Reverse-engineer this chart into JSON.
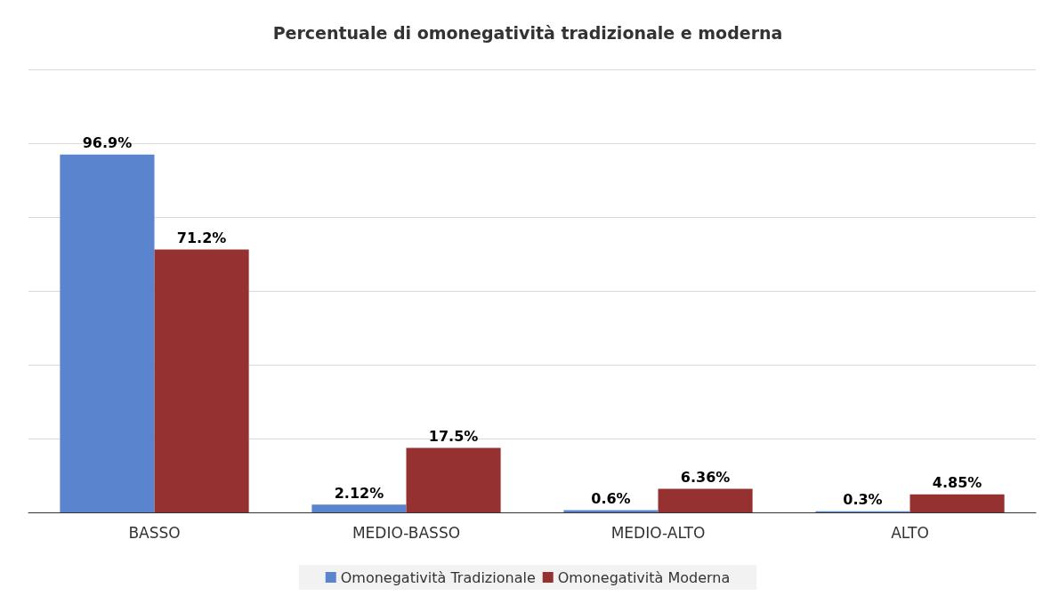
{
  "chart_data": {
    "type": "bar",
    "title": "Percentuale di omonegatività tradizionale e moderna",
    "categories": [
      "BASSO",
      "MEDIO-BASSO",
      "MEDIO-ALTO",
      "ALTO"
    ],
    "series": [
      {
        "name": "Omonegatività Tradizionale",
        "color": "#5b84cf",
        "values": [
          96.9,
          2.12,
          0.6,
          0.3
        ],
        "value_labels": [
          "96.9%",
          "2.12%",
          "0.6%",
          "0.3%"
        ]
      },
      {
        "name": "Omonegatività Moderna",
        "color": "#953231",
        "values": [
          71.2,
          17.5,
          6.36,
          4.85
        ],
        "value_labels": [
          "71.2%",
          "17.5%",
          "6.36%",
          "4.85%"
        ]
      }
    ],
    "ylim": [
      0,
      120
    ],
    "yticks": [
      {
        "value": 0,
        "label": null
      },
      {
        "value": 20,
        "label": null
      },
      {
        "value": 40,
        "label": null
      },
      {
        "value": 60,
        "label": null
      },
      {
        "value": 80,
        "label": null
      },
      {
        "value": 100,
        "label": null
      },
      {
        "value": 120,
        "label": null
      }
    ],
    "grid": "y",
    "legend": "bottom",
    "tick_labels": "x"
  }
}
